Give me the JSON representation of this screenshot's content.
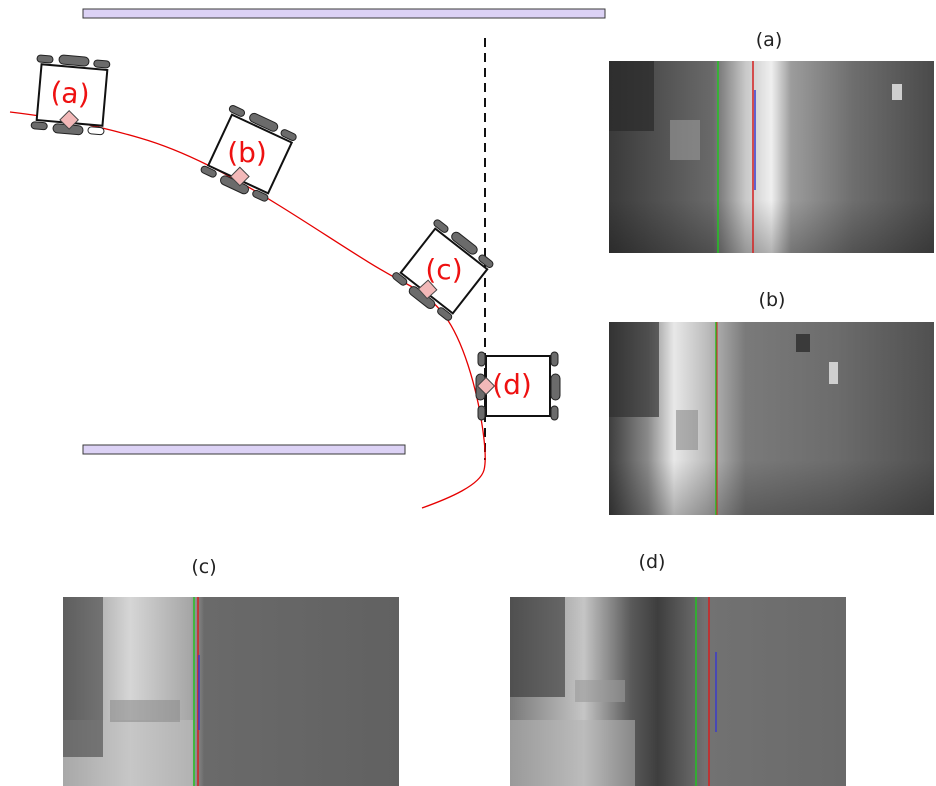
{
  "robots": [
    {
      "id": "a",
      "label": "(a)"
    },
    {
      "id": "b",
      "label": "(b)"
    },
    {
      "id": "c",
      "label": "(c)"
    },
    {
      "id": "d",
      "label": "(d)"
    }
  ],
  "views": [
    {
      "id": "a",
      "caption": "(a)"
    },
    {
      "id": "b",
      "caption": "(b)"
    },
    {
      "id": "c",
      "caption": "(c)"
    },
    {
      "id": "d",
      "caption": "(d)"
    }
  ],
  "colors": {
    "trajectory": "#e60000",
    "wall": "#dcd2f5",
    "wall_border": "#3a3a3a",
    "wheel": "#6b6b6b",
    "robot_label": "#ee1111",
    "line_green": "#22c322",
    "line_red": "#d42020",
    "line_blue": "#3a3acc"
  }
}
